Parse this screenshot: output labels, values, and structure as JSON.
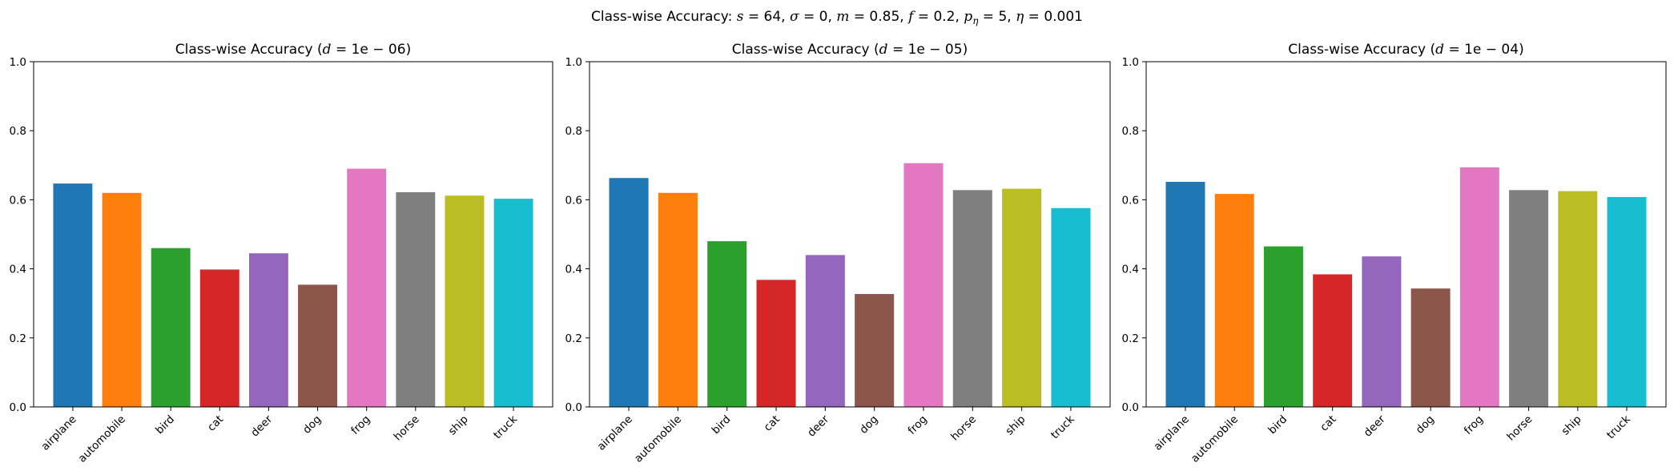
{
  "figure": {
    "suptitle_prefix": "Class-wise Accuracy: ",
    "suptitle_params": [
      {
        "sym": "s",
        "sub": "",
        "val": " = 64"
      },
      {
        "sym": "σ",
        "sub": "",
        "val": " = 0"
      },
      {
        "sym": "m",
        "sub": "",
        "val": " = 0.85"
      },
      {
        "sym": "f",
        "sub": "",
        "val": " = 0.2"
      },
      {
        "sym": "p",
        "sub": "η",
        "val": " = 5"
      },
      {
        "sym": "η",
        "sub": "",
        "val": " = 0.001"
      }
    ]
  },
  "chart_data": [
    {
      "type": "bar",
      "title_prefix": "Class-wise Accuracy (",
      "title_math": "d",
      "title_value": " = 1e − 06",
      "title_suffix": ")",
      "categories": [
        "airplane",
        "automobile",
        "bird",
        "cat",
        "deer",
        "dog",
        "frog",
        "horse",
        "ship",
        "truck"
      ],
      "values": [
        0.647,
        0.62,
        0.46,
        0.398,
        0.445,
        0.354,
        0.69,
        0.622,
        0.612,
        0.603
      ],
      "colors": [
        "#1f77b4",
        "#ff7f0e",
        "#2ca02c",
        "#d62728",
        "#9467bd",
        "#8c564b",
        "#e377c2",
        "#7f7f7f",
        "#bcbd22",
        "#17becf"
      ],
      "ylim": [
        0,
        1.0
      ],
      "yticks": [
        "0.0",
        "0.2",
        "0.4",
        "0.6",
        "0.8",
        "1.0"
      ],
      "grid": false
    },
    {
      "type": "bar",
      "title_prefix": "Class-wise Accuracy (",
      "title_math": "d",
      "title_value": " = 1e − 05",
      "title_suffix": ")",
      "categories": [
        "airplane",
        "automobile",
        "bird",
        "cat",
        "deer",
        "dog",
        "frog",
        "horse",
        "ship",
        "truck"
      ],
      "values": [
        0.663,
        0.62,
        0.48,
        0.368,
        0.44,
        0.327,
        0.706,
        0.628,
        0.632,
        0.576
      ],
      "colors": [
        "#1f77b4",
        "#ff7f0e",
        "#2ca02c",
        "#d62728",
        "#9467bd",
        "#8c564b",
        "#e377c2",
        "#7f7f7f",
        "#bcbd22",
        "#17becf"
      ],
      "ylim": [
        0,
        1.0
      ],
      "yticks": [
        "0.0",
        "0.2",
        "0.4",
        "0.6",
        "0.8",
        "1.0"
      ],
      "grid": false
    },
    {
      "type": "bar",
      "title_prefix": "Class-wise Accuracy (",
      "title_math": "d",
      "title_value": " = 1e − 04",
      "title_suffix": ")",
      "categories": [
        "airplane",
        "automobile",
        "bird",
        "cat",
        "deer",
        "dog",
        "frog",
        "horse",
        "ship",
        "truck"
      ],
      "values": [
        0.652,
        0.617,
        0.465,
        0.384,
        0.436,
        0.343,
        0.694,
        0.628,
        0.625,
        0.608
      ],
      "colors": [
        "#1f77b4",
        "#ff7f0e",
        "#2ca02c",
        "#d62728",
        "#9467bd",
        "#8c564b",
        "#e377c2",
        "#7f7f7f",
        "#bcbd22",
        "#17becf"
      ],
      "ylim": [
        0,
        1.0
      ],
      "yticks": [
        "0.0",
        "0.2",
        "0.4",
        "0.6",
        "0.8",
        "1.0"
      ],
      "grid": false
    }
  ]
}
